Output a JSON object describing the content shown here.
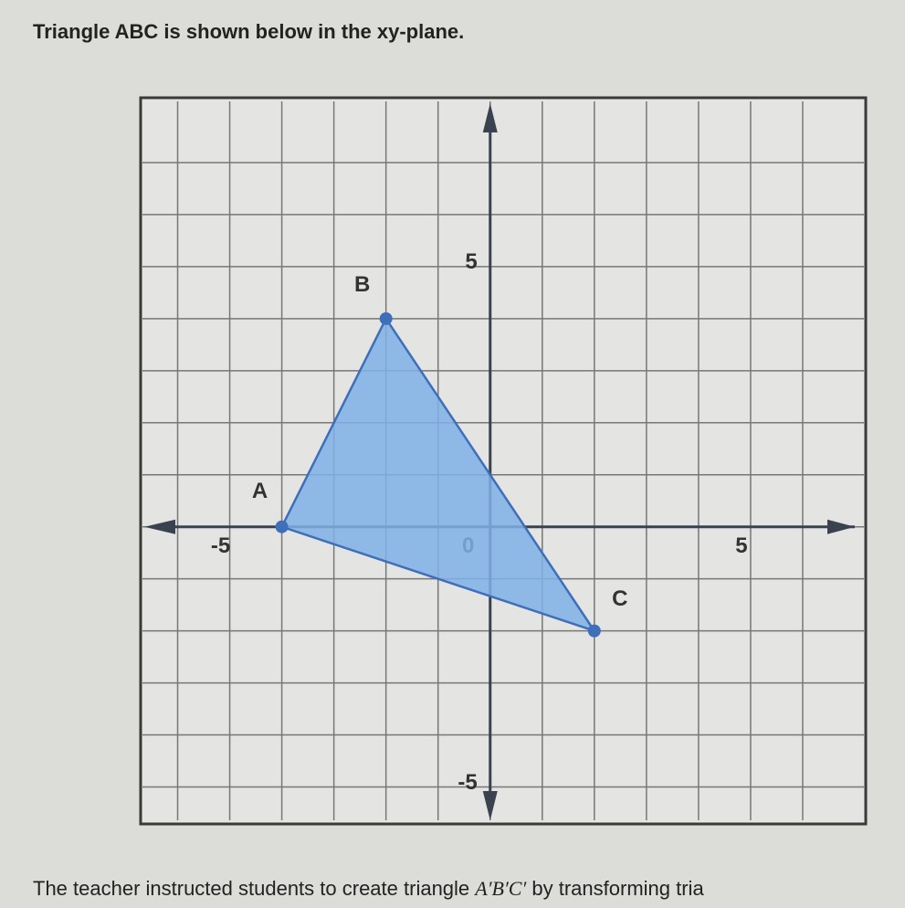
{
  "header": {
    "title": "Triangle ABC is shown below in the xy-plane."
  },
  "chart_data": {
    "type": "polygon",
    "xlim": [
      -6.5,
      7
    ],
    "ylim": [
      -5.5,
      8
    ],
    "xticks": [
      -5,
      0,
      5
    ],
    "yticks": [
      -5,
      5
    ],
    "xgrid": [
      -6,
      -5,
      -4,
      -3,
      -2,
      -1,
      0,
      1,
      2,
      3,
      4,
      5,
      6
    ],
    "ygrid": [
      -5,
      -4,
      -3,
      -2,
      -1,
      0,
      1,
      2,
      3,
      4,
      5,
      6,
      7
    ],
    "grid": true,
    "color": "#3f6fb8",
    "fill": "#7fb0e6",
    "points": [
      {
        "label": "A",
        "x": -4,
        "y": 0
      },
      {
        "label": "B",
        "x": -2,
        "y": 4
      },
      {
        "label": "C",
        "x": 2,
        "y": -2
      }
    ]
  },
  "footer": {
    "parts": [
      "The teacher instructed students to create triangle ",
      "A′B′C′",
      " by transforming tria"
    ]
  }
}
